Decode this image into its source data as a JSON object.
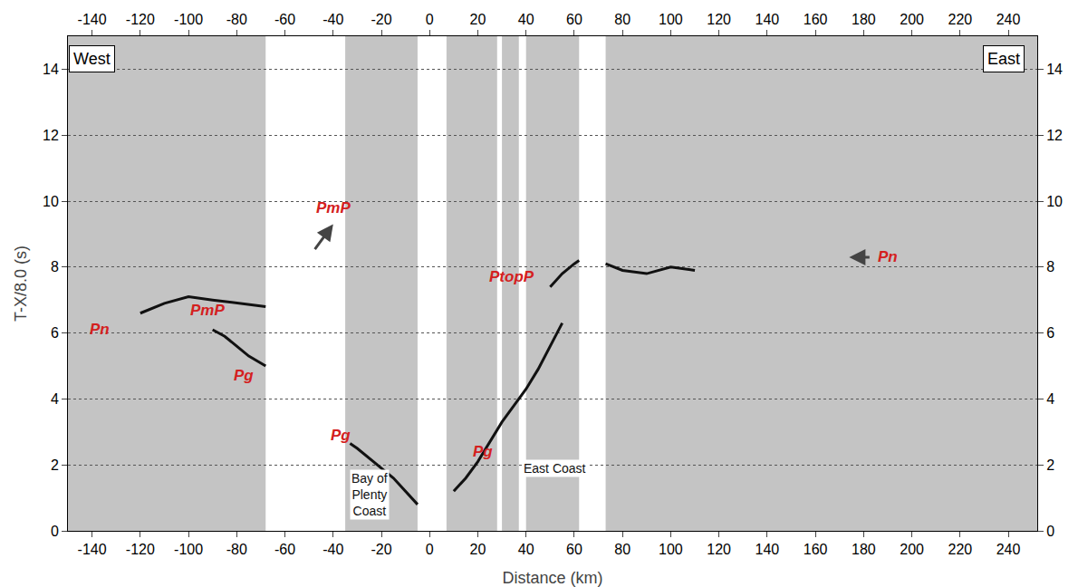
{
  "chart_data": {
    "type": "line",
    "x_label": "Distance (km)",
    "y_label": "T-X/8.0 (s)",
    "xlim": [
      -150,
      252
    ],
    "xticks": [
      -140,
      -120,
      -100,
      -80,
      -60,
      -40,
      -20,
      0,
      20,
      40,
      60,
      80,
      100,
      120,
      140,
      160,
      180,
      200,
      220,
      240
    ],
    "ylim": [
      0,
      15
    ],
    "yticks": [
      0,
      2,
      4,
      6,
      8,
      10,
      12,
      14
    ],
    "grid": true,
    "recorded_ranges": [
      [
        -150,
        -68
      ],
      [
        -35,
        -5
      ],
      [
        7,
        28
      ],
      [
        30,
        37
      ],
      [
        40,
        62
      ],
      [
        73,
        252
      ]
    ],
    "series": [
      {
        "color": "#111111",
        "x": [
          -5,
          -10,
          -15,
          -20,
          -25,
          -30,
          -33
        ],
        "values": [
          0.8,
          1.2,
          1.6,
          1.9,
          2.2,
          2.5,
          2.65
        ]
      },
      {
        "color": "#111111",
        "x": [
          10,
          15,
          20,
          25,
          30,
          35,
          40,
          45,
          50,
          55
        ],
        "values": [
          1.2,
          1.6,
          2.1,
          2.7,
          3.3,
          3.8,
          4.3,
          4.9,
          5.6,
          6.3
        ]
      },
      {
        "color": "#111111",
        "x": [
          -68,
          -75,
          -80,
          -85,
          -90
        ],
        "values": [
          5.0,
          5.3,
          5.6,
          5.9,
          6.1
        ]
      },
      {
        "color": "#111111",
        "x": [
          -68,
          -80,
          -90,
          -100,
          -110,
          -120
        ],
        "values": [
          6.8,
          6.9,
          7.0,
          7.1,
          6.9,
          6.6
        ]
      },
      {
        "color": "#111111",
        "x": [
          73,
          80,
          90,
          100,
          110
        ],
        "values": [
          8.1,
          7.9,
          7.8,
          8.0,
          7.9
        ]
      },
      {
        "color": "#111111",
        "x": [
          50,
          55,
          60,
          62
        ],
        "values": [
          7.4,
          7.8,
          8.1,
          8.2
        ]
      }
    ],
    "annotations": [
      {
        "text": "Pn",
        "x": -137,
        "y": 6.1,
        "color": "#d42020"
      },
      {
        "text": "PmP",
        "x": -92,
        "y": 6.7,
        "color": "#d42020"
      },
      {
        "text": "Pg",
        "x": -77,
        "y": 4.7,
        "color": "#d42020"
      },
      {
        "text": "PmP",
        "x": -40,
        "y": 9.8,
        "color": "#d42020"
      },
      {
        "text": "Pg",
        "x": -37,
        "y": 2.9,
        "color": "#d42020"
      },
      {
        "text": "PtopP",
        "x": 34,
        "y": 7.7,
        "color": "#d42020"
      },
      {
        "text": "Pg",
        "x": 22,
        "y": 2.4,
        "color": "#d42020"
      },
      {
        "text": "Pn",
        "x": 190,
        "y": 8.3,
        "color": "#d42020"
      },
      {
        "text": "Bay of Plenty Coast",
        "x": -25,
        "y": 1.1,
        "color": "#111111"
      },
      {
        "text": "East Coast",
        "x": 52,
        "y": 1.9,
        "color": "#111111"
      }
    ],
    "arrows": [
      {
        "x": -40,
        "y": 9.3,
        "ax": -48,
        "ay": 8.5
      },
      {
        "x": 174,
        "y": 8.3,
        "ax": 183,
        "ay": 8.3
      }
    ],
    "panel_labels": [
      {
        "text": "West",
        "x": -140,
        "y": 14.3
      },
      {
        "text": "East",
        "x": 238,
        "y": 14.3
      }
    ]
  }
}
